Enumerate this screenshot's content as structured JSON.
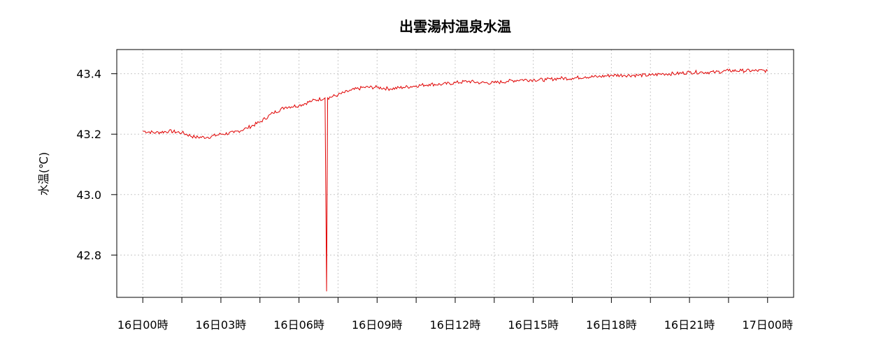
{
  "chart_data": {
    "type": "line",
    "title": "出雲湯村温泉水温",
    "xlabel": "",
    "ylabel": "水温(℃)",
    "x_unit": "hours from 16日00時",
    "xlim": [
      -1,
      25
    ],
    "ylim": [
      42.66,
      43.48
    ],
    "grid": true,
    "legend": "none",
    "yticks": [
      42.8,
      43.0,
      43.2,
      43.4
    ],
    "ytick_labels": [
      "42.8",
      "43.0",
      "43.2",
      "43.4"
    ],
    "xticks": [
      0,
      3,
      6,
      9,
      12,
      15,
      18,
      21,
      24
    ],
    "xtick_labels": [
      "16日00時",
      "16日03時",
      "16日06時",
      "16日09時",
      "16日12時",
      "16日15時",
      "16日18時",
      "16日21時",
      "17日00時"
    ],
    "series": [
      {
        "name": "",
        "color": "#e00000",
        "x": [
          0,
          0.5,
          1,
          1.5,
          2,
          2.5,
          3,
          3.5,
          4,
          4.5,
          5,
          5.5,
          6,
          6.5,
          7.0,
          7.06,
          7.1,
          7.5,
          8,
          8.5,
          9,
          9.5,
          10,
          10.5,
          11,
          11.5,
          12,
          12.5,
          13,
          13.5,
          14,
          14.5,
          15,
          15.5,
          16,
          16.5,
          17,
          17.5,
          18,
          18.5,
          19,
          19.5,
          20,
          20.5,
          21,
          21.5,
          22,
          22.5,
          23,
          23.5,
          24
        ],
        "y": [
          43.21,
          43.205,
          43.21,
          43.205,
          43.19,
          43.19,
          43.2,
          43.205,
          43.22,
          43.24,
          43.27,
          43.29,
          43.295,
          43.31,
          43.32,
          42.68,
          43.32,
          43.33,
          43.345,
          43.355,
          43.355,
          43.35,
          43.355,
          43.36,
          43.365,
          43.365,
          43.37,
          43.375,
          43.37,
          43.37,
          43.375,
          43.38,
          43.38,
          43.38,
          43.385,
          43.385,
          43.39,
          43.39,
          43.395,
          43.395,
          43.395,
          43.395,
          43.4,
          43.4,
          43.405,
          43.405,
          43.405,
          43.41,
          43.41,
          43.41,
          43.41
        ]
      }
    ]
  }
}
